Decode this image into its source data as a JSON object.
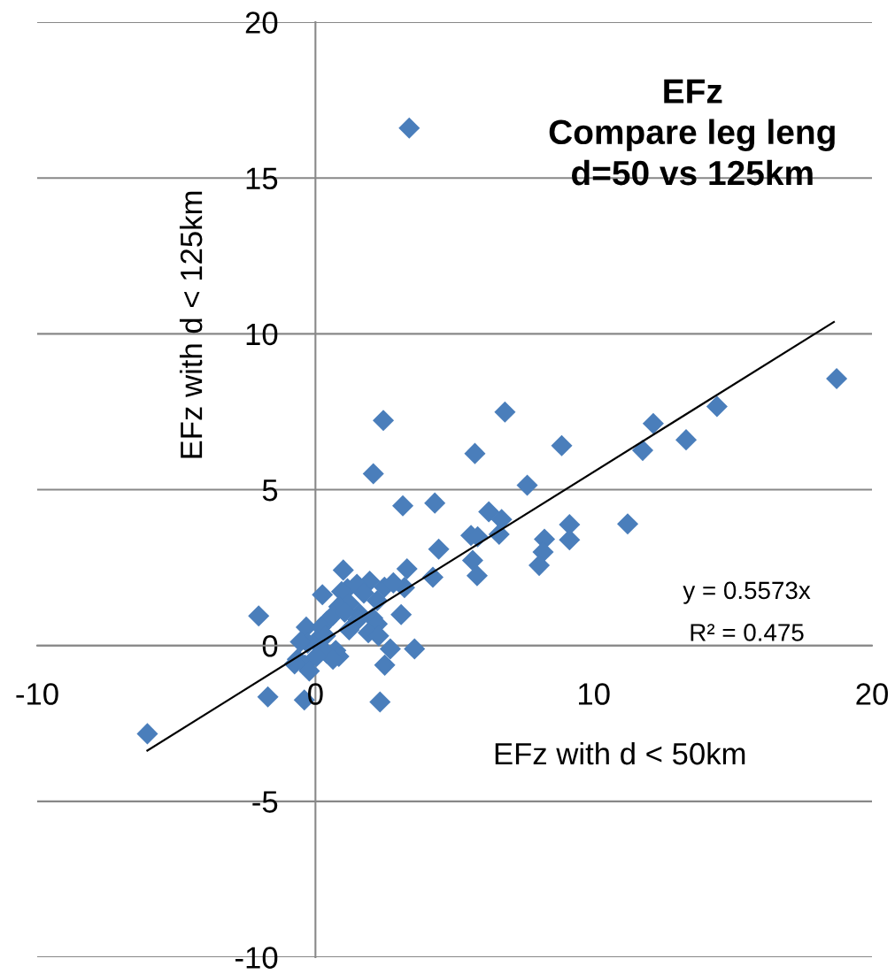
{
  "chart_data": {
    "type": "scatter",
    "title": "EFz\nCompare leg leng\nd=50 vs 125km",
    "xlabel": "EFz with d < 50km",
    "ylabel": "EFz with d < 125km",
    "xlim": [
      -10,
      20
    ],
    "xticks": [
      -10,
      0,
      10,
      20
    ],
    "ylim": [
      -10,
      20
    ],
    "yticks": [
      -10,
      -5,
      0,
      5,
      10,
      15,
      20
    ],
    "grid": "y",
    "annotations": [
      "y = 0.5573x",
      "R² = 0.475"
    ],
    "series": [
      {
        "marker": "diamond",
        "color": "#4a7ebb",
        "x": [
          3.37,
          2.44,
          2.08,
          6.81,
          5.73,
          8.85,
          11.76,
          12.14,
          13.32,
          14.43,
          18.73,
          7.61,
          3.14,
          4.29,
          6.23,
          6.69,
          6.6,
          9.13,
          9.13,
          11.22,
          8.23,
          8.18,
          8.04,
          5.59,
          5.83,
          4.43,
          5.65,
          5.81,
          4.22,
          3.29,
          3.2,
          3.08,
          -2.04,
          -1.71,
          -0.4,
          2.32,
          2.49,
          3.56,
          2.69,
          1.0,
          0.25,
          1.95,
          1.49,
          1.15,
          0.94,
          1.74,
          2.48,
          2.8,
          2.22,
          1.21,
          0.84,
          1.58,
          0.63,
          1.05,
          2.06,
          0.41,
          1.53,
          2.22,
          1.21,
          1.9,
          2.27,
          0.2,
          -0.33,
          0.04,
          0.36,
          -0.28,
          -0.54,
          0.2,
          0.73,
          0.41,
          0.84,
          0.63,
          -0.65,
          -0.38,
          -0.22,
          -0.75,
          0.04,
          -6.04
        ],
        "values": [
          16.6,
          7.22,
          5.51,
          7.49,
          6.16,
          6.41,
          6.26,
          7.12,
          6.6,
          7.67,
          8.56,
          5.14,
          4.48,
          4.57,
          4.29,
          4.04,
          3.57,
          3.88,
          3.39,
          3.9,
          3.41,
          3.0,
          2.57,
          3.53,
          3.49,
          3.09,
          2.73,
          2.24,
          2.19,
          2.46,
          1.86,
          0.99,
          0.95,
          -1.65,
          -1.75,
          -1.81,
          -0.63,
          -0.11,
          -0.11,
          2.42,
          1.63,
          2.06,
          1.96,
          1.82,
          1.73,
          1.68,
          1.87,
          2.01,
          1.44,
          1.35,
          1.25,
          1.02,
          0.97,
          1.07,
          0.88,
          0.78,
          0.83,
          0.69,
          0.5,
          0.41,
          0.31,
          0.59,
          0.59,
          0.17,
          0.31,
          0.08,
          0.12,
          -0.07,
          -0.16,
          -0.25,
          -0.35,
          -0.44,
          -0.44,
          -0.63,
          -0.82,
          -0.59,
          -0.35,
          -2.83
        ]
      },
      {
        "type": "line",
        "color": "#000000",
        "x": [
          -6.04,
          18.63
        ],
        "values": [
          -3.37,
          10.38
        ]
      }
    ]
  }
}
